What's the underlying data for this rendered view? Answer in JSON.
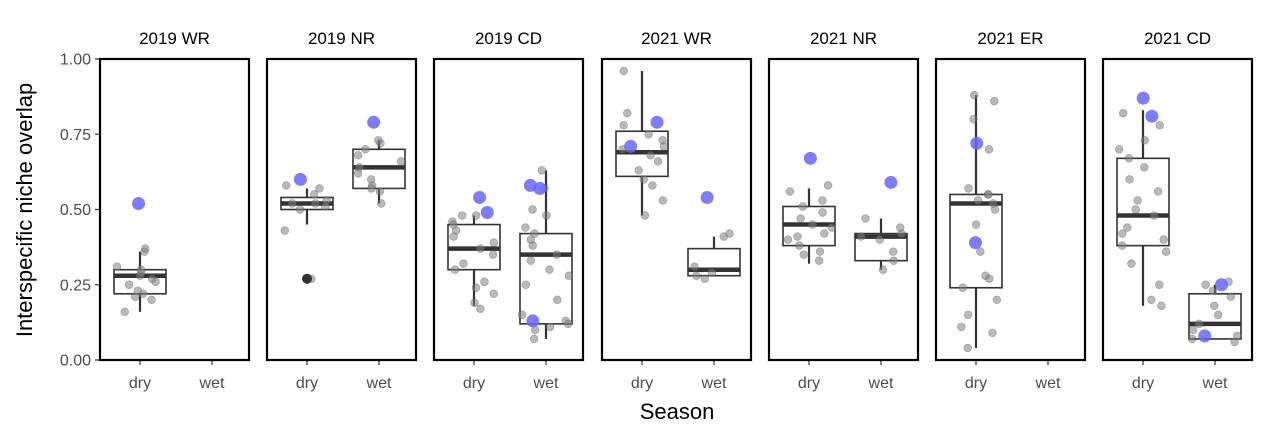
{
  "chart_data": {
    "type": "box",
    "xlabel": "Season",
    "ylabel": "Interspecific niche overlap",
    "ylim": [
      0,
      1
    ],
    "yticks": [
      "0.00",
      "0.25",
      "0.50",
      "0.75",
      "1.00"
    ],
    "categories": [
      "dry",
      "wet"
    ],
    "grid": false,
    "highlight_color": "#6666ff",
    "point_color": "#808080",
    "panels": [
      {
        "label": "2019 WR",
        "boxes": {
          "dry": {
            "q1": 0.22,
            "median": 0.28,
            "q3": 0.3,
            "whisker_low": 0.16,
            "whisker_high": 0.36
          },
          "wet": null
        },
        "points": {
          "dry": [
            0.16,
            0.2,
            0.22,
            0.23,
            0.25,
            0.26,
            0.27,
            0.28,
            0.29,
            0.3,
            0.31,
            0.36,
            0.37,
            0.21
          ],
          "wet": []
        },
        "highlights": {
          "dry": [
            0.52
          ],
          "wet": []
        },
        "outliers": {
          "dry": [],
          "wet": []
        }
      },
      {
        "label": "2019 NR",
        "boxes": {
          "dry": {
            "q1": 0.5,
            "median": 0.52,
            "q3": 0.54,
            "whisker_low": 0.45,
            "whisker_high": 0.57
          },
          "wet": {
            "q1": 0.57,
            "median": 0.64,
            "q3": 0.7,
            "whisker_low": 0.52,
            "whisker_high": 0.73
          }
        },
        "points": {
          "dry": [
            0.27,
            0.43,
            0.5,
            0.51,
            0.52,
            0.53,
            0.55,
            0.57,
            0.58,
            0.52
          ],
          "wet": [
            0.52,
            0.56,
            0.58,
            0.6,
            0.62,
            0.64,
            0.66,
            0.68,
            0.7,
            0.72,
            0.73,
            0.57
          ]
        },
        "highlights": {
          "dry": [
            0.6
          ],
          "wet": [
            0.79
          ]
        },
        "outliers": {
          "dry": [
            0.27
          ],
          "wet": []
        }
      },
      {
        "label": "2019 CD",
        "boxes": {
          "dry": {
            "q1": 0.3,
            "median": 0.37,
            "q3": 0.45,
            "whisker_low": 0.18,
            "whisker_high": 0.48
          },
          "wet": {
            "q1": 0.12,
            "median": 0.35,
            "q3": 0.42,
            "whisker_low": 0.07,
            "whisker_high": 0.63
          }
        },
        "points": {
          "dry": [
            0.17,
            0.19,
            0.22,
            0.26,
            0.3,
            0.32,
            0.35,
            0.37,
            0.39,
            0.41,
            0.43,
            0.45,
            0.46,
            0.48,
            0.24,
            0.48
          ],
          "wet": [
            0.07,
            0.1,
            0.11,
            0.12,
            0.13,
            0.2,
            0.25,
            0.28,
            0.3,
            0.33,
            0.35,
            0.38,
            0.4,
            0.42,
            0.44,
            0.48,
            0.5,
            0.57,
            0.63,
            0.15
          ]
        },
        "highlights": {
          "dry": [
            0.54,
            0.49
          ],
          "wet": [
            0.57,
            0.58,
            0.13
          ]
        },
        "outliers": {
          "dry": [],
          "wet": []
        }
      },
      {
        "label": "2021 WR",
        "boxes": {
          "dry": {
            "q1": 0.61,
            "median": 0.69,
            "q3": 0.76,
            "whisker_low": 0.48,
            "whisker_high": 0.96
          },
          "wet": {
            "q1": 0.28,
            "median": 0.3,
            "q3": 0.37,
            "whisker_low": 0.28,
            "whisker_high": 0.41
          }
        },
        "points": {
          "dry": [
            0.48,
            0.53,
            0.58,
            0.6,
            0.63,
            0.66,
            0.68,
            0.7,
            0.71,
            0.73,
            0.75,
            0.78,
            0.82,
            0.96
          ],
          "wet": [
            0.28,
            0.29,
            0.31,
            0.41,
            0.42,
            0.27
          ]
        },
        "highlights": {
          "dry": [
            0.71,
            0.79
          ],
          "wet": [
            0.54
          ]
        },
        "outliers": {
          "dry": [],
          "wet": []
        }
      },
      {
        "label": "2021 NR",
        "boxes": {
          "dry": {
            "q1": 0.38,
            "median": 0.45,
            "q3": 0.51,
            "whisker_low": 0.32,
            "whisker_high": 0.57
          },
          "wet": {
            "q1": 0.33,
            "median": 0.41,
            "q3": 0.42,
            "whisker_low": 0.3,
            "whisker_high": 0.47
          }
        },
        "points": {
          "dry": [
            0.33,
            0.35,
            0.36,
            0.38,
            0.4,
            0.42,
            0.44,
            0.45,
            0.47,
            0.49,
            0.51,
            0.53,
            0.56,
            0.58,
            0.41
          ],
          "wet": [
            0.3,
            0.33,
            0.36,
            0.4,
            0.41,
            0.42,
            0.44,
            0.47
          ]
        },
        "highlights": {
          "dry": [
            0.67
          ],
          "wet": [
            0.59
          ]
        },
        "outliers": {
          "dry": [],
          "wet": []
        }
      },
      {
        "label": "2021 ER",
        "boxes": {
          "dry": {
            "q1": 0.24,
            "median": 0.52,
            "q3": 0.55,
            "whisker_low": 0.04,
            "whisker_high": 0.88
          },
          "wet": null
        },
        "points": {
          "dry": [
            0.04,
            0.09,
            0.11,
            0.15,
            0.2,
            0.24,
            0.28,
            0.36,
            0.45,
            0.5,
            0.52,
            0.53,
            0.55,
            0.57,
            0.7,
            0.8,
            0.86,
            0.88,
            0.27,
            0.55
          ],
          "wet": []
        },
        "highlights": {
          "dry": [
            0.72,
            0.39
          ],
          "wet": []
        },
        "outliers": {
          "dry": [],
          "wet": []
        }
      },
      {
        "label": "2021 CD",
        "boxes": {
          "dry": {
            "q1": 0.38,
            "median": 0.48,
            "q3": 0.67,
            "whisker_low": 0.18,
            "whisker_high": 0.83
          },
          "wet": {
            "q1": 0.07,
            "median": 0.12,
            "q3": 0.22,
            "whisker_low": 0.07,
            "whisker_high": 0.25
          }
        },
        "points": {
          "dry": [
            0.18,
            0.2,
            0.25,
            0.32,
            0.36,
            0.38,
            0.4,
            0.42,
            0.44,
            0.48,
            0.5,
            0.53,
            0.56,
            0.6,
            0.64,
            0.67,
            0.7,
            0.73,
            0.78,
            0.82
          ],
          "wet": [
            0.06,
            0.07,
            0.08,
            0.1,
            0.12,
            0.15,
            0.18,
            0.21,
            0.23,
            0.25,
            0.26
          ]
        },
        "highlights": {
          "dry": [
            0.87,
            0.81
          ],
          "wet": [
            0.25,
            0.08
          ]
        },
        "outliers": {
          "dry": [],
          "wet": []
        }
      }
    ]
  }
}
